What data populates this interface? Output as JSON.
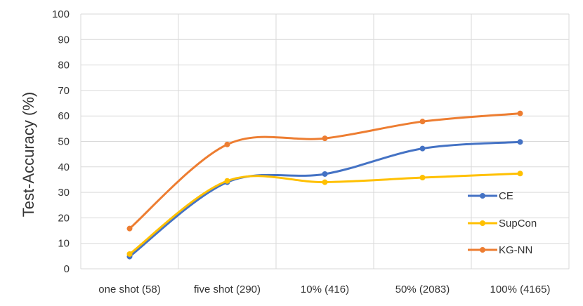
{
  "chart_data": {
    "type": "line",
    "smoothed": true,
    "categories": [
      "one shot (58)",
      "five shot (290)",
      "10% (416)",
      "50% (2083)",
      "100% (4165)"
    ],
    "series": [
      {
        "name": "CE",
        "color": "#4472C4",
        "values": [
          4.8,
          34,
          37.2,
          47.2,
          49.8
        ]
      },
      {
        "name": "SupCon",
        "color": "#FFC000",
        "values": [
          5.8,
          34.5,
          34,
          35.8,
          37.4
        ]
      },
      {
        "name": "KG-NN",
        "color": "#ED7D31",
        "values": [
          15.8,
          48.8,
          51.2,
          57.8,
          61
        ]
      }
    ],
    "ylabel": "Test-Accuracy (%)",
    "xlabel": "",
    "ylim": [
      0,
      100
    ],
    "yticks": [
      0,
      10,
      20,
      30,
      40,
      50,
      60,
      70,
      80,
      90,
      100
    ],
    "grid": true,
    "legend_position": "right"
  }
}
